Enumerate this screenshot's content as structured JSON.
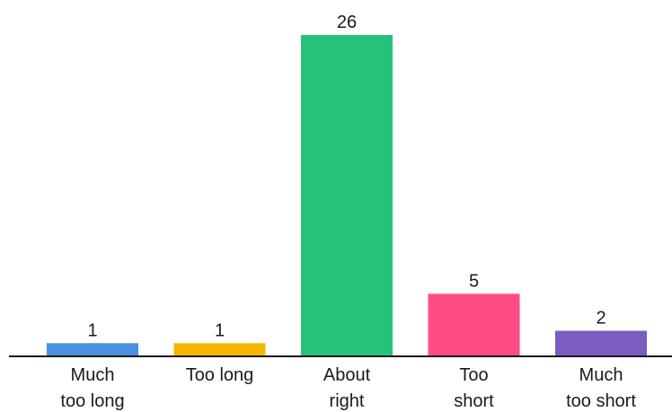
{
  "chart_data": {
    "type": "bar",
    "title": "",
    "xlabel": "",
    "ylabel": "",
    "categories": [
      [
        "Much",
        "too long"
      ],
      [
        "Too long"
      ],
      [
        "About",
        "right"
      ],
      [
        "Too",
        "short"
      ],
      [
        "Much",
        "too short"
      ]
    ],
    "values": [
      1,
      1,
      26,
      5,
      2
    ],
    "colors": [
      "#4a90e2",
      "#f5b800",
      "#27c27a",
      "#ff4d84",
      "#7c5cbf"
    ],
    "ylim": [
      0,
      26
    ],
    "grid": false,
    "legend": "none",
    "axis_color": "#1a1a1a"
  }
}
